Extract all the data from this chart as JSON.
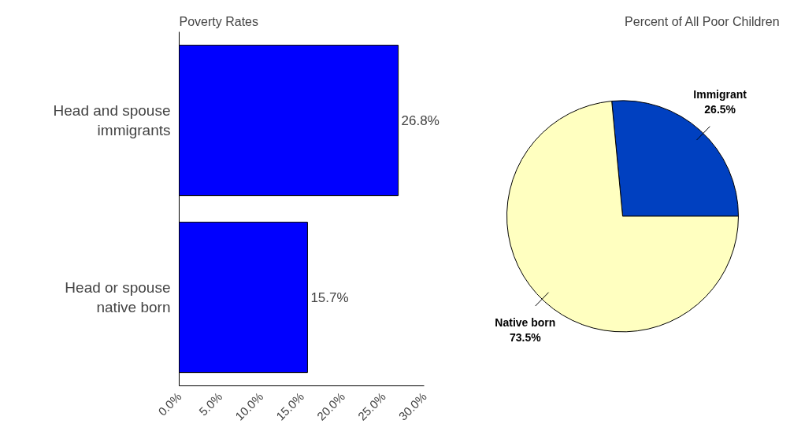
{
  "chart_data": [
    {
      "type": "bar",
      "title": "Poverty Rates",
      "orientation": "horizontal",
      "categories": [
        "Head and spouse\nimmigrants",
        "Head or spouse\nnative born"
      ],
      "values": [
        26.8,
        15.7
      ],
      "color": "#0000ff",
      "value_labels": [
        "26.8%",
        "15.7%"
      ],
      "xlim": [
        0,
        30
      ],
      "xticks": [
        {
          "value": 0,
          "label": "0.0%"
        },
        {
          "value": 5,
          "label": "5.0%"
        },
        {
          "value": 10,
          "label": "10.0%"
        },
        {
          "value": 15,
          "label": "15.0%"
        },
        {
          "value": 20,
          "label": "20.0%"
        },
        {
          "value": 25,
          "label": "25.0%"
        },
        {
          "value": 30,
          "label": "30.0%"
        }
      ]
    },
    {
      "type": "pie",
      "title": "Percent of All Poor Children",
      "categories": [
        "Immigrant",
        "Native born"
      ],
      "values": [
        26.5,
        73.5
      ],
      "colors": [
        "#0040c0",
        "#ffffc0"
      ],
      "value_labels": [
        "26.5%",
        "73.5%"
      ]
    }
  ]
}
